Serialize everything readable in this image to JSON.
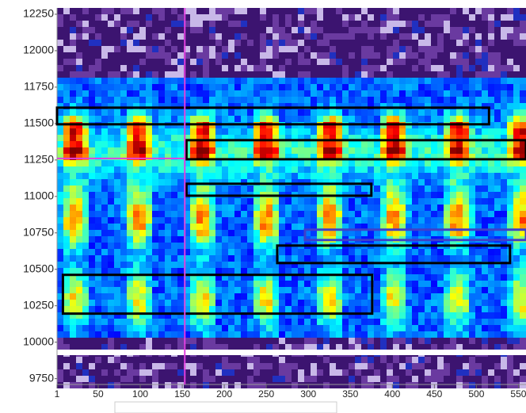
{
  "chart_data": {
    "type": "spectrogram",
    "xlim": [
      1,
      559
    ],
    "ylim": [
      9710,
      12270
    ],
    "xticks": [
      1,
      50,
      100,
      150,
      200,
      250,
      300,
      350,
      400,
      450,
      500,
      550
    ],
    "yticks": [
      9750,
      10000,
      10250,
      10500,
      10750,
      11000,
      11250,
      11500,
      11750,
      12000,
      12250
    ],
    "regions": [
      {
        "x": [
          1,
          515
        ],
        "y": [
          11495,
          11609
        ],
        "color": "#000000"
      },
      {
        "x": [
          155,
          559
        ],
        "y": [
          11255,
          11386
        ],
        "color": "#000000"
      },
      {
        "x": [
          155,
          375
        ],
        "y": [
          11005,
          11087
        ],
        "color": "#000000"
      },
      {
        "x": [
          296,
          559
        ],
        "y": [
          10701,
          10772
        ],
        "color": "#4040c8"
      },
      {
        "x": [
          263,
          540
        ],
        "y": [
          10543,
          10663
        ],
        "color": "#000000"
      },
      {
        "x": [
          8,
          376
        ],
        "y": [
          10196,
          10462
        ],
        "color": "#000000"
      }
    ],
    "cursor": {
      "x": 153,
      "y": 11261,
      "color": "#e040e0"
    }
  }
}
